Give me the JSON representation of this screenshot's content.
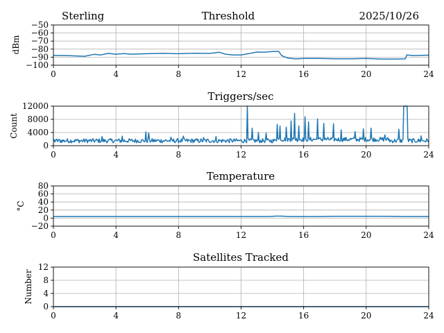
{
  "header": {
    "station": "Sterling",
    "date": "2025/10/26"
  },
  "colors": {
    "series": "#1f77b4",
    "grid": "#b0b0b0"
  },
  "chart_data": [
    {
      "type": "line",
      "title": "Threshold",
      "ylabel": "dBm",
      "xlim": [
        0,
        24
      ],
      "ylim": [
        -100,
        -50
      ],
      "xticks": [
        0,
        4,
        8,
        12,
        16,
        20,
        24
      ],
      "yticks": [
        -100,
        -90,
        -80,
        -70,
        -60,
        -50
      ],
      "x": [
        0,
        1,
        2,
        2.6,
        3,
        3.5,
        4,
        4.5,
        5,
        6,
        7,
        8,
        9,
        10,
        10.6,
        11,
        11.5,
        12,
        12.5,
        13,
        13.5,
        14,
        14.4,
        14.6,
        15,
        15.5,
        16,
        17,
        18,
        19,
        20,
        21,
        22,
        22.5,
        22.6,
        23,
        24
      ],
      "y": [
        -88,
        -88,
        -89,
        -87,
        -87.5,
        -85.5,
        -86,
        -86,
        -86.5,
        -86,
        -85.5,
        -85.5,
        -85.5,
        -85,
        -84,
        -86,
        -87,
        -87.5,
        -86,
        -84,
        -83.5,
        -83,
        -83,
        -88,
        -91,
        -92,
        -92,
        -92,
        -92,
        -92,
        -92,
        -92,
        -92,
        -92,
        -87,
        -88,
        -88
      ]
    },
    {
      "type": "line",
      "title": "Triggers/sec",
      "ylabel": "Count",
      "xlim": [
        0,
        24
      ],
      "ylim": [
        0,
        12000
      ],
      "xticks": [
        0,
        4,
        8,
        12,
        16,
        20,
        24
      ],
      "yticks": [
        0,
        4000,
        8000,
        12000
      ],
      "baseline": 1500,
      "spikes": [
        {
          "x": 3.1,
          "y": 2800
        },
        {
          "x": 4.4,
          "y": 2900
        },
        {
          "x": 5.9,
          "y": 4200
        },
        {
          "x": 6.1,
          "y": 3900
        },
        {
          "x": 7.5,
          "y": 2600
        },
        {
          "x": 8.3,
          "y": 2900
        },
        {
          "x": 9.6,
          "y": 2500
        },
        {
          "x": 10.4,
          "y": 2800
        },
        {
          "x": 12.4,
          "y": 12000
        },
        {
          "x": 12.7,
          "y": 5300
        },
        {
          "x": 13.1,
          "y": 4000
        },
        {
          "x": 13.6,
          "y": 3800
        },
        {
          "x": 14.3,
          "y": 6500
        },
        {
          "x": 14.5,
          "y": 6000
        },
        {
          "x": 14.9,
          "y": 5600
        },
        {
          "x": 15.2,
          "y": 7500
        },
        {
          "x": 15.4,
          "y": 9800
        },
        {
          "x": 15.7,
          "y": 6000
        },
        {
          "x": 16.1,
          "y": 8800
        },
        {
          "x": 16.3,
          "y": 7200
        },
        {
          "x": 16.9,
          "y": 8100
        },
        {
          "x": 17.3,
          "y": 6800
        },
        {
          "x": 17.9,
          "y": 6700
        },
        {
          "x": 18.4,
          "y": 4800
        },
        {
          "x": 19.3,
          "y": 4300
        },
        {
          "x": 19.8,
          "y": 5100
        },
        {
          "x": 20.3,
          "y": 5300
        },
        {
          "x": 21.2,
          "y": 3300
        },
        {
          "x": 22.1,
          "y": 5000
        },
        {
          "x": 22.4,
          "y": 12000
        },
        {
          "x": 22.6,
          "y": 12000
        },
        {
          "x": 23.5,
          "y": 3000
        }
      ]
    },
    {
      "type": "line",
      "title": "Temperature",
      "ylabel": "°C",
      "xlim": [
        0,
        24
      ],
      "ylim": [
        -20,
        80
      ],
      "xticks": [
        0,
        4,
        8,
        12,
        16,
        20,
        24
      ],
      "yticks": [
        -20,
        0,
        20,
        40,
        60,
        80
      ],
      "x": [
        0,
        13.8,
        14.2,
        14.6,
        15,
        17,
        18,
        19,
        21,
        22.5,
        24
      ],
      "y": [
        4,
        4,
        5,
        5,
        4,
        4,
        4.5,
        4.5,
        4.5,
        4,
        4
      ]
    },
    {
      "type": "line",
      "title": "Satellites Tracked",
      "ylabel": "Number",
      "xlim": [
        0,
        24
      ],
      "ylim": [
        0,
        12
      ],
      "xticks": [
        0,
        4,
        8,
        12,
        16,
        20,
        24
      ],
      "yticks": [
        0,
        4,
        8,
        12
      ],
      "x": [
        0,
        24
      ],
      "y": [
        0,
        0
      ]
    }
  ]
}
